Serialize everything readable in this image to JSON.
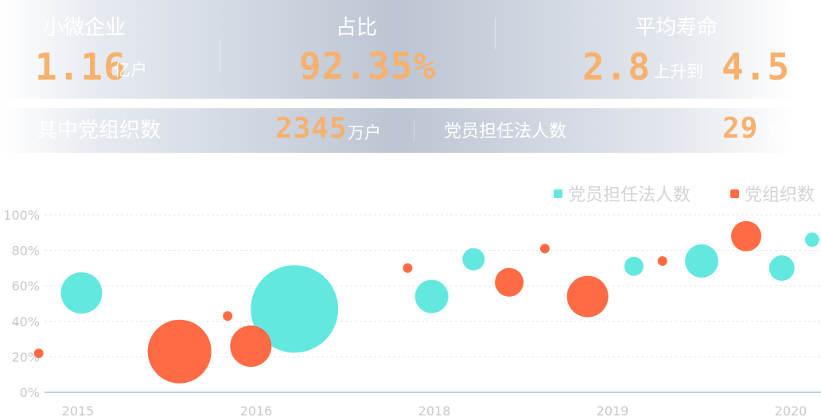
{
  "top_stats": {
    "small_business": {
      "label": "小微企业",
      "value": "1.16",
      "unit": "亿户"
    },
    "share": {
      "label": "占比",
      "value": "92.35%"
    },
    "lifespan": {
      "label": "平均寿命",
      "from": "2.8",
      "rise": "上升到",
      "to": "4.5"
    }
  },
  "mid_stats": {
    "party_orgs": {
      "label": "其中党组织数",
      "value": "2345",
      "unit": "万户"
    },
    "legal_persons": {
      "label": "党员担任法人数",
      "value": "29",
      "unit": "万户"
    }
  },
  "colors": {
    "legal": "#63e8df",
    "orgs": "#ff6b45",
    "number": "#f7b16c",
    "grid": "#dfe7f0",
    "axis": "#8bb6e6"
  },
  "chart_data": {
    "type": "scatter",
    "title": "",
    "xlabel": "",
    "ylabel": "",
    "x_ticks": [
      2015,
      2016,
      2018,
      2019,
      2020
    ],
    "y_ticks": [
      "0%",
      "20%",
      "40%",
      "60%",
      "80%",
      "100%"
    ],
    "ylim": [
      0,
      100
    ],
    "grid": true,
    "legend_position": "top-right",
    "series": [
      {
        "name": "党员担任法人数",
        "color": "#63e8df",
        "points": [
          {
            "x": 2015.02,
            "y": 56,
            "size": 26
          },
          {
            "x": 2016.43,
            "y": 47,
            "size": 55
          },
          {
            "x": 2017.97,
            "y": 54,
            "size": 21
          },
          {
            "x": 2018.22,
            "y": 75,
            "size": 14
          },
          {
            "x": 2019.12,
            "y": 71,
            "size": 12
          },
          {
            "x": 2019.5,
            "y": 74,
            "size": 21
          },
          {
            "x": 2019.95,
            "y": 70,
            "size": 16
          },
          {
            "x": 2020.12,
            "y": 86,
            "size": 9
          }
        ]
      },
      {
        "name": "党组织数",
        "color": "#ff6b45",
        "points": [
          {
            "x": 2014.78,
            "y": 22,
            "size": 6
          },
          {
            "x": 2015.57,
            "y": 23,
            "size": 40
          },
          {
            "x": 2015.84,
            "y": 43,
            "size": 6
          },
          {
            "x": 2015.97,
            "y": 26,
            "size": 26
          },
          {
            "x": 2017.7,
            "y": 70,
            "size": 6
          },
          {
            "x": 2018.42,
            "y": 62,
            "size": 18
          },
          {
            "x": 2018.62,
            "y": 81,
            "size": 6
          },
          {
            "x": 2018.86,
            "y": 54,
            "size": 26
          },
          {
            "x": 2019.28,
            "y": 74,
            "size": 6
          },
          {
            "x": 2019.75,
            "y": 88,
            "size": 19
          }
        ]
      }
    ]
  }
}
